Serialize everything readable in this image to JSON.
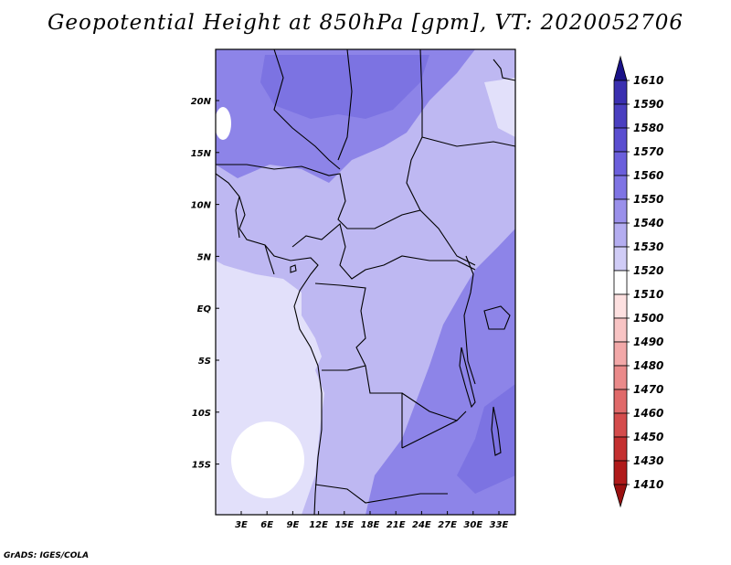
{
  "title": "Geopotential Height at 850hPa [gpm], VT: 2020052706",
  "footer": "GrADS: IGES/COLA",
  "map": {
    "lat_labels": [
      "20N",
      "15N",
      "10N",
      "5N",
      "EQ",
      "5S",
      "10S",
      "15S"
    ],
    "lon_labels": [
      "3E",
      "6E",
      "9E",
      "12E",
      "15E",
      "18E",
      "21E",
      "24E",
      "27E",
      "30E",
      "33E"
    ]
  },
  "colorbar": {
    "levels": [
      "1610",
      "1590",
      "1580",
      "1570",
      "1560",
      "1550",
      "1540",
      "1530",
      "1520",
      "1510",
      "1500",
      "1490",
      "1480",
      "1470",
      "1460",
      "1450",
      "1430",
      "1410"
    ],
    "colors": [
      "#2a1f9c",
      "#3a2fb0",
      "#4a3fc0",
      "#5a4ed0",
      "#6b5fdc",
      "#7f74e4",
      "#9a90ea",
      "#b4adf0",
      "#d0ccf6",
      "#ffffff",
      "#fde0e0",
      "#f8c4c4",
      "#f2a8a8",
      "#ea8a8a",
      "#e06a6a",
      "#d44c4c",
      "#c43030",
      "#b01a1a"
    ],
    "top_arrow_color": "#1a1288",
    "bottom_arrow_color": "#9a1010"
  },
  "fields": {
    "ocean_south": "#e2e0fa",
    "land_main": "#beb8f2",
    "land_north": "#8d84e8",
    "land_east": "#7c73e2",
    "white_core": "#ffffff"
  }
}
